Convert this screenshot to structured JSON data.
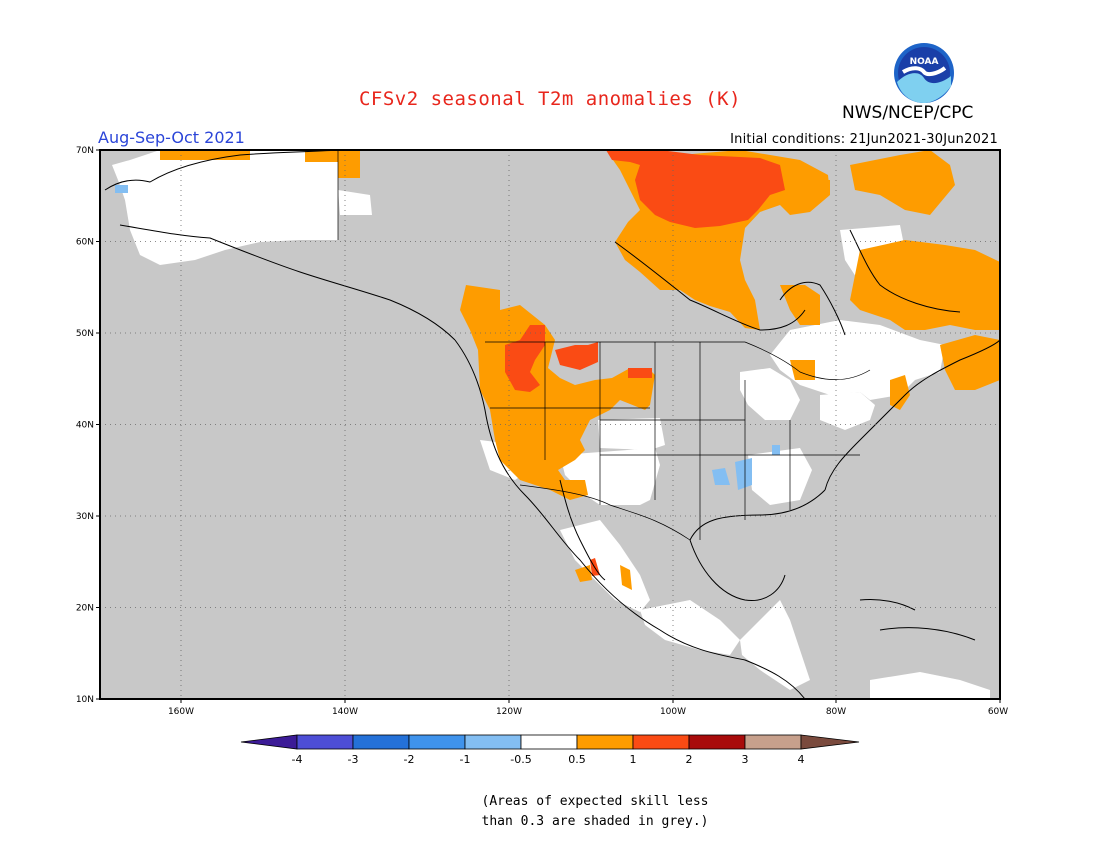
{
  "title": "CFSv2 seasonal T2m anomalies (K)",
  "agency": "NWS/NCEP/CPC",
  "logo_text": "NOAA",
  "period": "Aug-Sep-Oct 2021",
  "initial_conditions": "Initial conditions: 21Jun2021-30Jun2021",
  "lat_labels": [
    "70N",
    "60N",
    "50N",
    "40N",
    "30N",
    "20N",
    "10N"
  ],
  "lon_labels": [
    "160W",
    "140W",
    "120W",
    "100W",
    "80W",
    "60W"
  ],
  "colorbar": {
    "labels": [
      "-4",
      "-3",
      "-2",
      "-1",
      "-0.5",
      "0.5",
      "1",
      "2",
      "3",
      "4"
    ],
    "colors": [
      "#3c1b97",
      "#4d4ed6",
      "#2471d8",
      "#3f93ec",
      "#83bef2",
      "#ffffff",
      "#fe9c00",
      "#fa4b14",
      "#a80b0b",
      "#c7a08c",
      "#7a4a3d"
    ]
  },
  "colors": {
    "ocean_grey": "#c8c8c8",
    "land_white": "#ffffff",
    "anomaly_orange": "#fe9c00",
    "anomaly_red": "#fa4b14",
    "anomaly_blue": "#83bef2",
    "title_red": "#e8261c",
    "period_blue": "#2b45d8"
  },
  "note_line1": "(Areas of expected skill less",
  "note_line2": "than 0.3 are shaded in grey.)"
}
